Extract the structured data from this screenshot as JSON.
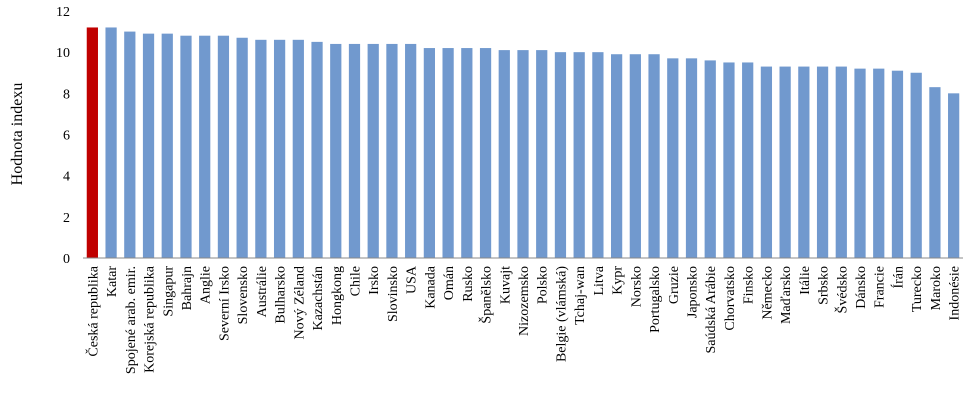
{
  "chart_data": {
    "type": "bar",
    "y_label": "Hodnota indexu",
    "categories": [
      "Česká republika",
      "Katar",
      "Spojené arab. emir.",
      "Korejská republika",
      "Singapur",
      "Bahrajn",
      "Anglie",
      "Severní Irsko",
      "Slovensko",
      "Austrálie",
      "Bulharsko",
      "Nový Zéland",
      "Kazachstán",
      "Hongkong",
      "Chile",
      "Irsko",
      "Slovinsko",
      "USA",
      "Kanada",
      "Omán",
      "Rusko",
      "Španělsko",
      "Kuvajt",
      "Nizozemsko",
      "Polsko",
      "Belgie (vlámská)",
      "Tchaj-wan",
      "Litva",
      "Kypr",
      "Norsko",
      "Portugalsko",
      "Gruzie",
      "Japonsko",
      "Saúdská Arábie",
      "Chorvatsko",
      "Finsko",
      "Německo",
      "Maďarsko",
      "Itálie",
      "Srbsko",
      "Švédsko",
      "Dánsko",
      "Francie",
      "Írán",
      "Turecko",
      "Maroko",
      "Indonésie"
    ],
    "values": [
      11.2,
      11.2,
      11.0,
      10.9,
      10.9,
      10.8,
      10.8,
      10.8,
      10.7,
      10.6,
      10.6,
      10.6,
      10.5,
      10.4,
      10.4,
      10.4,
      10.4,
      10.4,
      10.2,
      10.2,
      10.2,
      10.2,
      10.1,
      10.1,
      10.1,
      10.0,
      10.0,
      10.0,
      9.9,
      9.9,
      9.9,
      9.7,
      9.7,
      9.6,
      9.5,
      9.5,
      9.3,
      9.3,
      9.3,
      9.3,
      9.3,
      9.2,
      9.2,
      9.1,
      9.0,
      8.3,
      8.0
    ],
    "color": "#7199ce",
    "highlight_color": "#c00000",
    "highlight_index": 0,
    "ylim": [
      0,
      12
    ],
    "yticks": [
      0,
      2,
      4,
      6,
      8,
      10,
      12
    ],
    "grid": false
  }
}
